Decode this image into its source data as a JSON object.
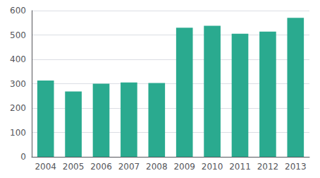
{
  "chart_data": {
    "type": "bar",
    "categories": [
      "2004",
      "2005",
      "2006",
      "2007",
      "2008",
      "2009",
      "2010",
      "2011",
      "2012",
      "2013"
    ],
    "values": [
      313,
      268,
      300,
      305,
      303,
      530,
      538,
      505,
      514,
      570
    ],
    "color": "#2aaa8f",
    "ylim": [
      0,
      600
    ],
    "yticks": [
      0,
      100,
      200,
      300,
      400,
      500,
      600
    ],
    "grid": true
  }
}
